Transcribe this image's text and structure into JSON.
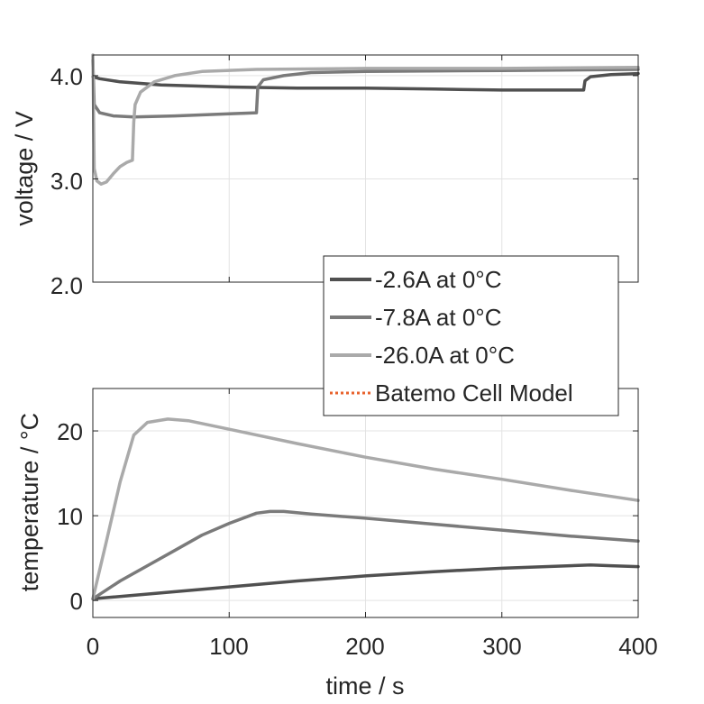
{
  "chart_data": [
    {
      "type": "line",
      "xlabel": "",
      "ylabel": "voltage / V",
      "xlim": [
        0,
        400
      ],
      "ylim": [
        2.0,
        4.2
      ],
      "xticks": [
        0,
        100,
        200,
        300,
        400
      ],
      "yticks": [
        2.0,
        3.0,
        4.0
      ],
      "ytick_labels": [
        "2.0",
        "3.0",
        "4.0"
      ],
      "grid": true,
      "colors": [
        "#505050",
        "#7a7a7a",
        "#aaaaaa"
      ],
      "series": [
        {
          "name": "-2.6A at 0°C",
          "x": [
            0,
            5,
            20,
            50,
            100,
            150,
            200,
            250,
            300,
            360,
            361,
            365,
            380,
            400
          ],
          "y": [
            3.99,
            3.97,
            3.94,
            3.91,
            3.89,
            3.88,
            3.88,
            3.87,
            3.86,
            3.86,
            3.95,
            3.99,
            4.01,
            4.02
          ]
        },
        {
          "name": "-7.8A at 0°C",
          "x": [
            0,
            1,
            5,
            15,
            30,
            60,
            100,
            120,
            121,
            125,
            140,
            160,
            200,
            300,
            400
          ],
          "y": [
            4.15,
            3.72,
            3.64,
            3.61,
            3.6,
            3.61,
            3.63,
            3.64,
            3.89,
            3.96,
            4.0,
            4.03,
            4.04,
            4.05,
            4.06
          ]
        },
        {
          "name": "-26.0A at 0°C",
          "x": [
            0,
            1,
            3,
            6,
            10,
            15,
            20,
            25,
            29,
            30,
            31,
            35,
            45,
            60,
            80,
            120,
            200,
            300,
            400
          ],
          "y": [
            4.2,
            3.1,
            2.98,
            2.95,
            2.97,
            3.05,
            3.12,
            3.16,
            3.18,
            3.55,
            3.72,
            3.84,
            3.94,
            4.0,
            4.04,
            4.06,
            4.07,
            4.07,
            4.08
          ]
        }
      ]
    },
    {
      "type": "line",
      "xlabel": "time / s",
      "ylabel": "temperature / °C",
      "xlim": [
        0,
        400
      ],
      "ylim": [
        -2,
        25
      ],
      "xticks": [
        0,
        100,
        200,
        300,
        400
      ],
      "yticks": [
        0,
        10,
        20
      ],
      "ytick_labels": [
        "0",
        "10",
        "20"
      ],
      "grid": true,
      "colors": [
        "#505050",
        "#7a7a7a",
        "#aaaaaa"
      ],
      "series": [
        {
          "name": "-2.6A at 0°C",
          "x": [
            0,
            50,
            100,
            150,
            200,
            250,
            300,
            350,
            365,
            380,
            400
          ],
          "y": [
            0.2,
            0.9,
            1.6,
            2.3,
            2.9,
            3.4,
            3.8,
            4.1,
            4.2,
            4.1,
            4.0
          ]
        },
        {
          "name": "-7.8A at 0°C",
          "x": [
            0,
            20,
            40,
            60,
            80,
            100,
            120,
            130,
            140,
            160,
            200,
            250,
            300,
            350,
            400
          ],
          "y": [
            0.2,
            2.3,
            4.1,
            5.9,
            7.7,
            9.1,
            10.3,
            10.5,
            10.5,
            10.2,
            9.7,
            9.0,
            8.3,
            7.6,
            7.0
          ]
        },
        {
          "name": "-26.0A at 0°C",
          "x": [
            0,
            10,
            20,
            30,
            40,
            55,
            70,
            100,
            150,
            200,
            250,
            300,
            350,
            400
          ],
          "y": [
            0.2,
            7.0,
            14.0,
            19.5,
            21.0,
            21.4,
            21.2,
            20.2,
            18.5,
            16.9,
            15.5,
            14.3,
            13.0,
            11.8
          ]
        }
      ]
    }
  ],
  "legend": {
    "placement": "between-panels-right",
    "items": [
      {
        "label": "-2.6A at 0°C",
        "color": "#505050",
        "style": "solid"
      },
      {
        "label": "-7.8A at 0°C",
        "color": "#7a7a7a",
        "style": "solid"
      },
      {
        "label": "-26.0A at 0°C",
        "color": "#aaaaaa",
        "style": "solid"
      },
      {
        "label": "Batemo Cell Model",
        "color": "#e8622c",
        "style": "dotted"
      }
    ]
  },
  "xtick_labels": [
    "0",
    "100",
    "200",
    "300",
    "400"
  ]
}
